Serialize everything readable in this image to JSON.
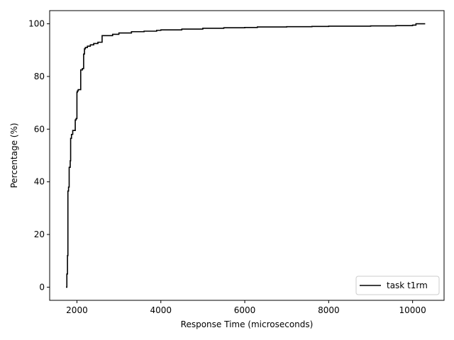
{
  "chart_data": {
    "type": "line",
    "title": "",
    "xlabel": "Response Time (microseconds)",
    "ylabel": "Percentage (%)",
    "xlim": [
      1350,
      10750
    ],
    "ylim": [
      -5,
      105
    ],
    "xticks": [
      2000,
      4000,
      6000,
      8000,
      10000
    ],
    "yticks": [
      0,
      20,
      40,
      60,
      80,
      100
    ],
    "grid": false,
    "legend_position": "lower right",
    "series": [
      {
        "name": "task t1rm",
        "color": "#000000",
        "step": true,
        "x": [
          1740,
          1760,
          1775,
          1785,
          1800,
          1815,
          1840,
          1850,
          1870,
          1900,
          1960,
          1980,
          2000,
          2010,
          2030,
          2090,
          2130,
          2160,
          2180,
          2200,
          2250,
          2320,
          2400,
          2500,
          2580,
          2600,
          2850,
          3000,
          3300,
          3600,
          3900,
          4000,
          4500,
          5000,
          5500,
          6000,
          6300,
          7000,
          7600,
          8000,
          9000,
          9600,
          10000,
          10080,
          10300
        ],
        "y": [
          0,
          5,
          12,
          36.5,
          38,
          45.5,
          48,
          56.5,
          58,
          59.5,
          63.5,
          64,
          74,
          74.5,
          75,
          82.5,
          83,
          88.5,
          90.5,
          91,
          91.5,
          92,
          92.5,
          93,
          93,
          95.5,
          96,
          96.5,
          97,
          97.2,
          97.5,
          97.7,
          98,
          98.3,
          98.5,
          98.6,
          98.8,
          98.9,
          99,
          99.1,
          99.2,
          99.3,
          99.5,
          100,
          100
        ]
      }
    ]
  }
}
